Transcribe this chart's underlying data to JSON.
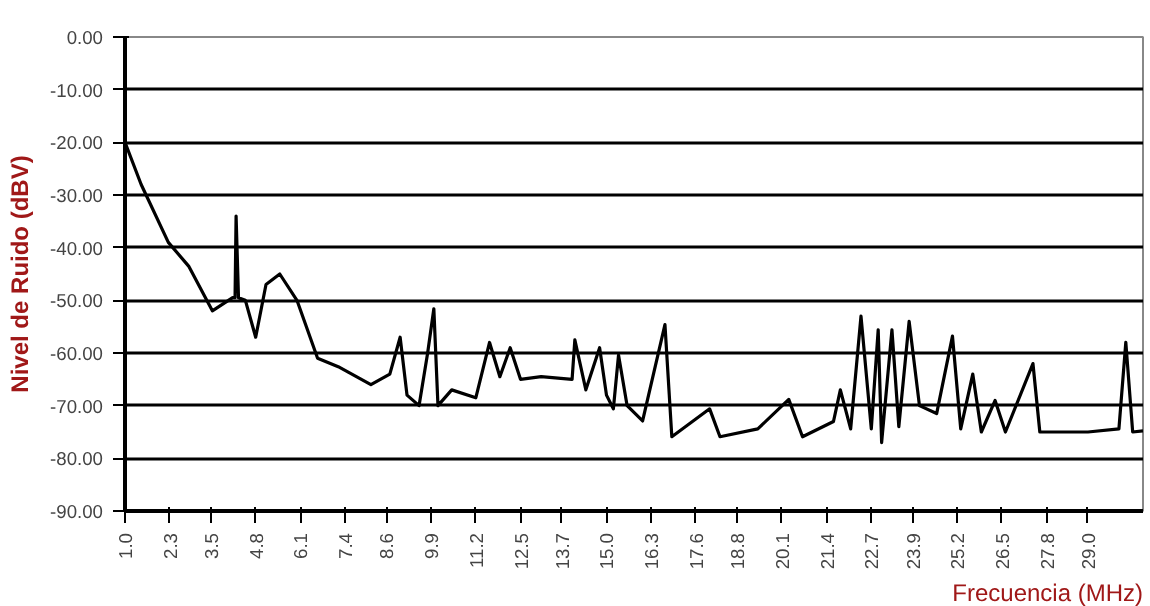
{
  "chart_data": {
    "type": "line",
    "xlabel": "Frecuencia (MHz)",
    "ylabel": "Nivel de Ruido (dBV)",
    "x": [
      1.0,
      1.47,
      2.26,
      2.85,
      3.54,
      4.13,
      4.2,
      4.23,
      4.3,
      4.5,
      4.8,
      5.1,
      5.5,
      6.0,
      6.6,
      7.2,
      8.15,
      8.7,
      9.0,
      9.2,
      9.55,
      9.8,
      9.98,
      10.1,
      10.5,
      11.2,
      11.6,
      11.9,
      12.2,
      12.5,
      13.1,
      14.0,
      14.08,
      14.4,
      14.8,
      15.0,
      15.2,
      15.35,
      15.6,
      16.05,
      16.7,
      16.9,
      18.0,
      18.3,
      19.4,
      20.3,
      20.7,
      21.6,
      21.8,
      22.1,
      22.4,
      22.7,
      22.9,
      23.0,
      23.3,
      23.5,
      23.8,
      24.1,
      24.6,
      25.06,
      25.3,
      25.65,
      25.9,
      26.3,
      26.6,
      27.4,
      27.6,
      29.0,
      29.9,
      30.1,
      30.3,
      30.6
    ],
    "series": [
      {
        "color": "#000000",
        "values": [
          -20,
          -28,
          -39,
          -43.5,
          -52,
          -49.5,
          -49.5,
          -34,
          -49.5,
          -50,
          -57,
          -47,
          -45,
          -50,
          -61,
          -62.6,
          -66,
          -64,
          -57,
          -68,
          -70,
          -60,
          -51.6,
          -70,
          -67,
          -68.5,
          -58,
          -64.5,
          -59,
          -65,
          -64.5,
          -65,
          -57.5,
          -67,
          -59,
          -68,
          -70.6,
          -60.4,
          -70,
          -72.9,
          -54.6,
          -75.9,
          -70.6,
          -75.9,
          -74.4,
          -68.8,
          -75.9,
          -73,
          -67,
          -74.4,
          -53,
          -74.4,
          -55.6,
          -77,
          -55.6,
          -74,
          -54,
          -70,
          -71.5,
          -56.8,
          -74.4,
          -64,
          -75,
          -69,
          -75,
          -62,
          -75,
          -75,
          -74.4,
          -58,
          -75,
          -74.8
        ]
      }
    ],
    "xlim": [
      1.0,
      30.6
    ],
    "ylim": [
      -90,
      0
    ],
    "xticks": [
      {
        "value": 1.0,
        "label": "1.0"
      },
      2.3,
      3.5,
      4.8,
      6.1,
      7.4,
      8.6,
      9.9,
      11.2,
      12.5,
      13.7,
      {
        "value": 15.0,
        "label": "15.0"
      },
      16.3,
      17.6,
      18.8,
      20.1,
      21.4,
      22.7,
      23.9,
      25.2,
      26.5,
      27.8,
      {
        "value": 29.0,
        "label": "29.0"
      }
    ],
    "yticks": [
      {
        "value": 0,
        "label": "0.00"
      },
      {
        "value": -10,
        "label": "-10.00"
      },
      {
        "value": -20,
        "label": "-20.00"
      },
      {
        "value": -30,
        "label": "-30.00"
      },
      {
        "value": -40,
        "label": "-40.00"
      },
      {
        "value": -50,
        "label": "-50.00"
      },
      {
        "value": -60,
        "label": "-60.00"
      },
      {
        "value": -70,
        "label": "-70.00"
      },
      {
        "value": -80,
        "label": "-80.00"
      },
      {
        "value": -90,
        "label": "-90.00"
      }
    ],
    "grid": "y",
    "marker": "none",
    "line_style": "solid"
  }
}
